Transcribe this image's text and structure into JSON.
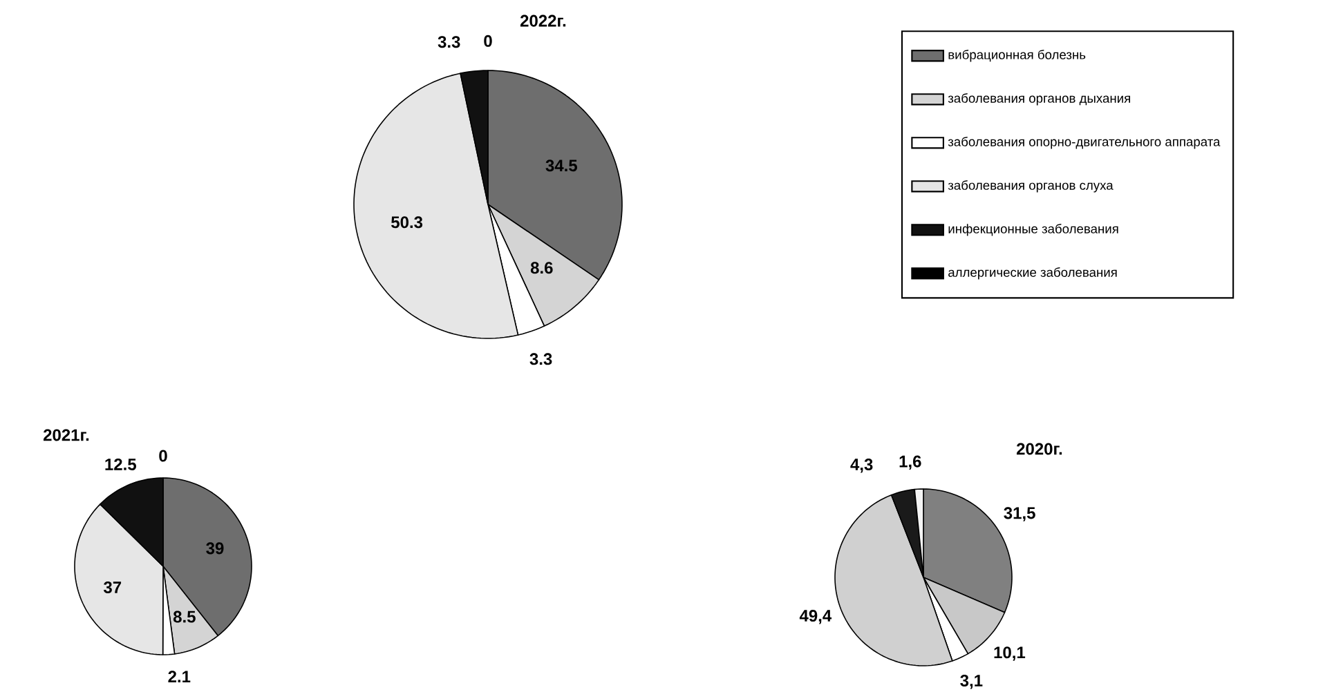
{
  "chart_data": [
    {
      "type": "pie",
      "title": "2022г.",
      "legend": "right",
      "categories": [
        "вибрационная болезнь",
        "заболевания органов дыхания",
        "заболевания опорно-двигательного аппарата",
        "заболевания органов слуха",
        "инфекционные заболевания",
        "аллергические заболевания"
      ],
      "values": [
        34.5,
        8.6,
        3.3,
        50.3,
        3.3,
        0
      ],
      "value_labels": [
        "34.5",
        "8.6",
        "3.3",
        "50.3",
        "3.3",
        "0"
      ],
      "colors": [
        "#6e6e6e",
        "#d4d4d4",
        "#ffffff",
        "#e6e6e6",
        "#111111",
        "#000000"
      ]
    },
    {
      "type": "pie",
      "title": "2021г.",
      "categories": [
        null,
        null,
        null,
        null,
        null,
        null
      ],
      "values": [
        39,
        8.5,
        2.1,
        37,
        12.5,
        0
      ],
      "value_labels": [
        "39",
        "8.5",
        "2.1",
        "37",
        "12.5",
        "0"
      ],
      "colors": [
        "#6e6e6e",
        "#d4d4d4",
        "#ffffff",
        "#e6e6e6",
        "#111111",
        "#000000"
      ]
    },
    {
      "type": "pie",
      "title": "2020г.",
      "categories": [
        null,
        null,
        null,
        null,
        null,
        null
      ],
      "values": [
        31.5,
        10.1,
        3.1,
        49.4,
        4.3,
        1.6
      ],
      "value_labels": [
        "31,5",
        "10,1",
        "3,1",
        "49,4",
        "4,3",
        "1,6"
      ],
      "colors": [
        "#808080",
        "#c8c8c8",
        "#ffffff",
        "#d0d0d0",
        "#1a1a1a",
        "#f4f4f4"
      ]
    }
  ]
}
